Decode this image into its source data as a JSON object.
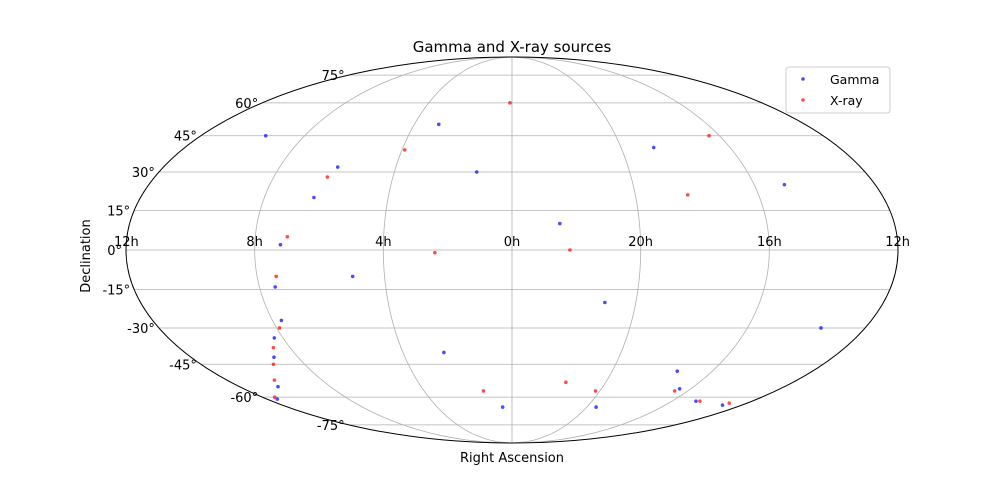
{
  "chart_data": {
    "type": "scatter",
    "projection": "mollweide",
    "title": "Gamma and X-ray sources",
    "xlabel": "Right Ascension",
    "ylabel": "Declination",
    "grid": true,
    "legend_placement": "top-right",
    "ra_tick_labels": [
      {
        "ra_h": 8,
        "label": "8h"
      },
      {
        "ra_h": 4,
        "label": "4h"
      },
      {
        "ra_h": 0,
        "label": "0h"
      },
      {
        "ra_h": 20,
        "label": "20h"
      },
      {
        "ra_h": 16,
        "label": "16h"
      }
    ],
    "ra_edge_label": "12h",
    "dec_tick_labels": [
      {
        "dec": 75,
        "label": "75°"
      },
      {
        "dec": 60,
        "label": "60°"
      },
      {
        "dec": 45,
        "label": "45°"
      },
      {
        "dec": 30,
        "label": "30°"
      },
      {
        "dec": 15,
        "label": "15°"
      },
      {
        "dec": 0,
        "label": "0°"
      },
      {
        "dec": -15,
        "label": "-15°"
      },
      {
        "dec": -30,
        "label": "-30°"
      },
      {
        "dec": -45,
        "label": "-45°"
      },
      {
        "dec": -60,
        "label": "-60°"
      },
      {
        "dec": -75,
        "label": "-75°"
      }
    ],
    "series": [
      {
        "name": "Gamma",
        "color": "#0000ff",
        "points": [
          {
            "ra_h": 6.0,
            "dec": 32
          },
          {
            "ra_h": 6.4,
            "dec": 20
          },
          {
            "ra_h": 7.2,
            "dec": 2
          },
          {
            "ra_h": 7.5,
            "dec": -14
          },
          {
            "ra_h": 7.7,
            "dec": -27
          },
          {
            "ra_h": 8.3,
            "dec": -34
          },
          {
            "ra_h": 8.9,
            "dec": -42
          },
          {
            "ra_h": 10.3,
            "dec": -55
          },
          {
            "ra_h": 11.5,
            "dec": -61
          },
          {
            "ra_h": 13.0,
            "dec": -64
          },
          {
            "ra_h": 14.8,
            "dec": -62
          },
          {
            "ra_h": 16.5,
            "dec": -56
          },
          {
            "ra_h": 17.4,
            "dec": -48
          },
          {
            "ra_h": 3.0,
            "dec": 50
          },
          {
            "ra_h": 1.2,
            "dec": 30
          },
          {
            "ra_h": 22.5,
            "dec": 10
          },
          {
            "ra_h": 21.0,
            "dec": -20
          },
          {
            "ra_h": 18.8,
            "dec": 40
          },
          {
            "ra_h": 15.0,
            "dec": 25
          },
          {
            "ra_h": 13.5,
            "dec": -30
          },
          {
            "ra_h": 2.5,
            "dec": -40
          },
          {
            "ra_h": 0.5,
            "dec": -65
          },
          {
            "ra_h": 5.0,
            "dec": -10
          },
          {
            "ra_h": 9.5,
            "dec": 45
          },
          {
            "ra_h": 19.5,
            "dec": -65
          }
        ]
      },
      {
        "name": "X-ray",
        "color": "#ff0000",
        "points": [
          {
            "ra_h": 6.2,
            "dec": 28
          },
          {
            "ra_h": 7.0,
            "dec": 5
          },
          {
            "ra_h": 7.4,
            "dec": -10
          },
          {
            "ra_h": 7.9,
            "dec": -30
          },
          {
            "ra_h": 8.6,
            "dec": -38
          },
          {
            "ra_h": 9.2,
            "dec": -45
          },
          {
            "ra_h": 10.0,
            "dec": -52
          },
          {
            "ra_h": 11.4,
            "dec": -60
          },
          {
            "ra_h": 12.9,
            "dec": -63
          },
          {
            "ra_h": 14.6,
            "dec": -62
          },
          {
            "ra_h": 16.6,
            "dec": -57
          },
          {
            "ra_h": 1.3,
            "dec": -57
          },
          {
            "ra_h": 22.2,
            "dec": 0
          },
          {
            "ra_h": 18.3,
            "dec": 21
          },
          {
            "ra_h": 3.9,
            "dec": 39
          },
          {
            "ra_h": 0.1,
            "dec": 60
          },
          {
            "ra_h": 20.2,
            "dec": -57
          },
          {
            "ra_h": 21.7,
            "dec": -53
          },
          {
            "ra_h": 16.4,
            "dec": 45
          },
          {
            "ra_h": 2.4,
            "dec": -1
          }
        ]
      }
    ]
  }
}
